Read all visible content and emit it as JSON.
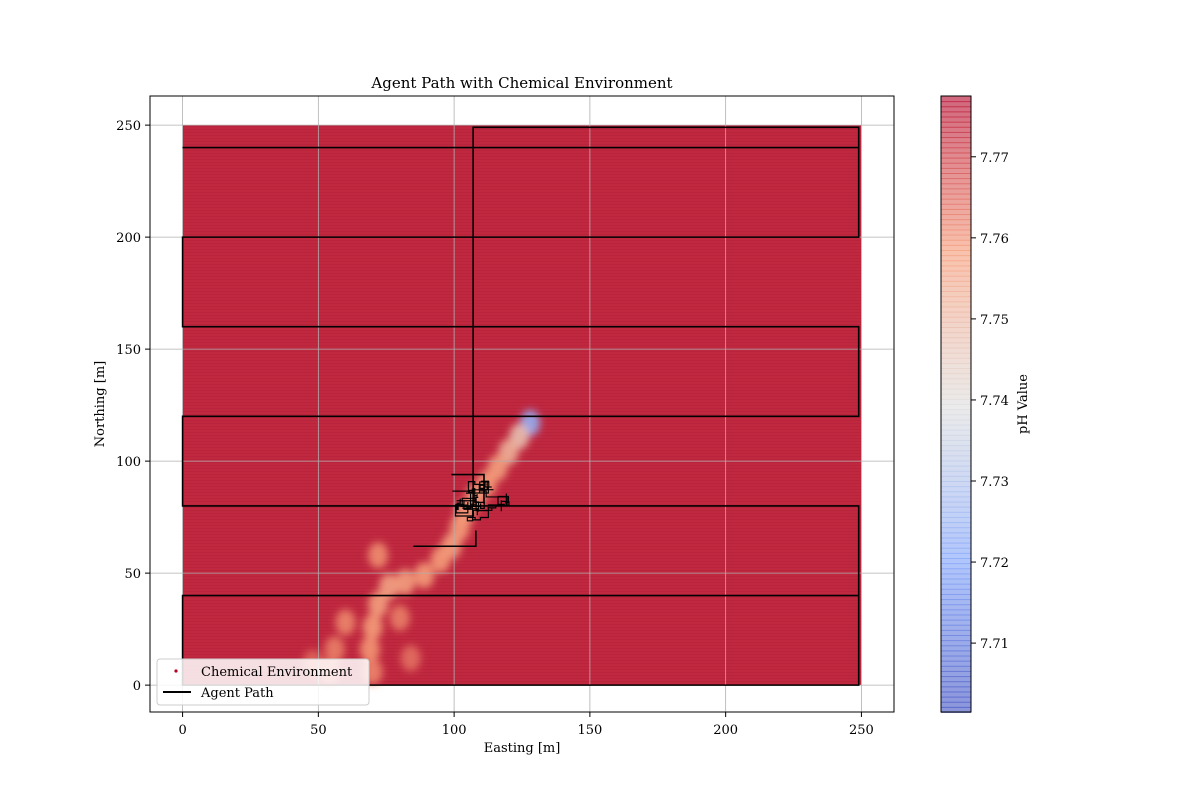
{
  "chart_data": {
    "type": "scatter",
    "title": "Agent Path with Chemical Environment",
    "xlabel": "Easting [m]",
    "ylabel": "Northing [m]",
    "xlim": [
      -12,
      262
    ],
    "ylim": [
      -12,
      263
    ],
    "x_ticks": [
      0,
      50,
      100,
      150,
      200,
      250
    ],
    "y_ticks": [
      0,
      50,
      100,
      150,
      200,
      250
    ],
    "grid": true,
    "legend_position": "lower-left",
    "legend": [
      {
        "label": "Chemical Environment",
        "marker": "point",
        "color": "#b40426"
      },
      {
        "label": "Agent Path",
        "marker": "line",
        "color": "#000000"
      }
    ],
    "colorbar": {
      "label": "pH Value",
      "colormap": "coolwarm",
      "range": [
        7.7015,
        7.7775
      ],
      "ticks": [
        7.71,
        7.72,
        7.73,
        7.74,
        7.75,
        7.76,
        7.77
      ]
    },
    "environment": {
      "extent_x": [
        0,
        250
      ],
      "extent_y": [
        0,
        250
      ],
      "background_ph": 7.777,
      "background_color": "#c0283f",
      "plume": [
        {
          "x": 128,
          "y": 117,
          "ph": 7.725
        },
        {
          "x": 124,
          "y": 111,
          "ph": 7.748
        },
        {
          "x": 120,
          "y": 104,
          "ph": 7.752
        },
        {
          "x": 116,
          "y": 97,
          "ph": 7.757
        },
        {
          "x": 112,
          "y": 90,
          "ph": 7.758
        },
        {
          "x": 108,
          "y": 84,
          "ph": 7.757
        },
        {
          "x": 104,
          "y": 77,
          "ph": 7.757
        },
        {
          "x": 102,
          "y": 70,
          "ph": 7.758
        },
        {
          "x": 99,
          "y": 62,
          "ph": 7.757
        },
        {
          "x": 95,
          "y": 56,
          "ph": 7.758
        },
        {
          "x": 89,
          "y": 49,
          "ph": 7.758
        },
        {
          "x": 82,
          "y": 46,
          "ph": 7.757
        },
        {
          "x": 76,
          "y": 44,
          "ph": 7.756
        },
        {
          "x": 72,
          "y": 36,
          "ph": 7.757
        },
        {
          "x": 70,
          "y": 26,
          "ph": 7.758
        },
        {
          "x": 69,
          "y": 16,
          "ph": 7.759
        },
        {
          "x": 70,
          "y": 6,
          "ph": 7.761
        },
        {
          "x": 60,
          "y": 28,
          "ph": 7.761
        },
        {
          "x": 56,
          "y": 16,
          "ph": 7.762
        },
        {
          "x": 54,
          "y": 6,
          "ph": 7.763
        },
        {
          "x": 48,
          "y": 10,
          "ph": 7.765
        },
        {
          "x": 72,
          "y": 58,
          "ph": 7.76
        },
        {
          "x": 80,
          "y": 30,
          "ph": 7.762
        },
        {
          "x": 84,
          "y": 12,
          "ph": 7.764
        }
      ]
    },
    "agent_path": {
      "lawnmower": [
        [
          0,
          240
        ],
        [
          249,
          240
        ],
        [
          249,
          200
        ],
        [
          0,
          200
        ],
        [
          0,
          160
        ],
        [
          249,
          160
        ],
        [
          249,
          120
        ],
        [
          0,
          120
        ],
        [
          0,
          80
        ],
        [
          249,
          80
        ],
        [
          249,
          40
        ],
        [
          0,
          40
        ],
        [
          0,
          0
        ],
        [
          249,
          0
        ],
        [
          249,
          40
        ]
      ],
      "transit": [
        [
          107,
          80
        ],
        [
          107,
          249
        ],
        [
          249,
          249
        ],
        [
          249,
          240
        ]
      ],
      "search_box": [
        [
          99,
          94
        ],
        [
          111,
          94
        ],
        [
          111,
          81
        ]
      ],
      "search_box_low": [
        [
          85,
          62
        ],
        [
          108,
          62
        ],
        [
          108,
          69
        ]
      ],
      "search_center": [
        103,
        79
      ]
    }
  }
}
